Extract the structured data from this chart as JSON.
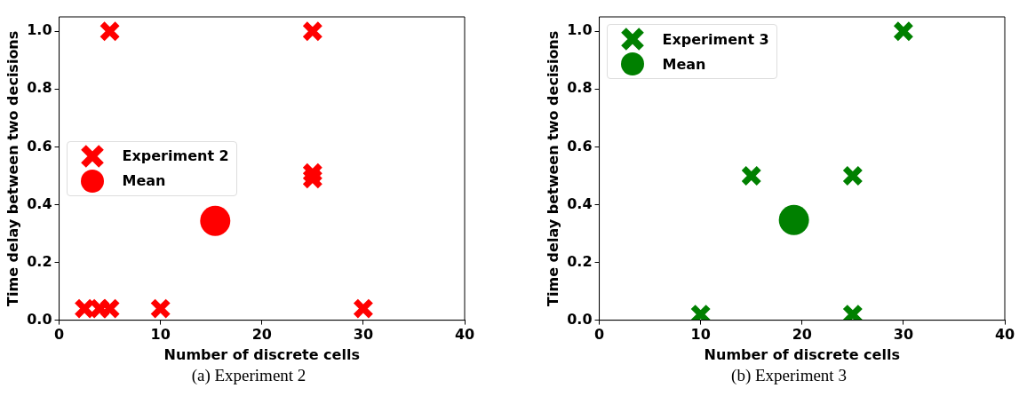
{
  "chart_data": [
    {
      "type": "scatter",
      "xlabel": "Number of discrete cells",
      "ylabel": "Time delay between two decisions",
      "annotations": [
        "(a) Experiment 2"
      ],
      "xlim": [
        0,
        40
      ],
      "xticks": [
        0,
        10,
        20,
        30,
        40
      ],
      "ylim": [
        0,
        1.05
      ],
      "yticks": [
        {
          "value": 0,
          "label": "0.0"
        },
        {
          "value": 0.2,
          "label": "0.2"
        },
        {
          "value": 0.4,
          "label": "0.4"
        },
        {
          "value": 0.6,
          "label": "0.6"
        },
        {
          "value": 0.8,
          "label": "0.8"
        },
        {
          "value": 1,
          "label": "1.0"
        }
      ],
      "grid": false,
      "legend": "center left",
      "series": [
        {
          "name": "Experiment 2",
          "color": "#ff0000",
          "marker": "cross",
          "x": [
            5,
            25,
            25,
            25,
            2.5,
            4,
            5,
            10,
            30
          ],
          "values": [
            1,
            1,
            0.51,
            0.49,
            0.04,
            0.04,
            0.04,
            0.04,
            0.04
          ]
        },
        {
          "name": "Mean",
          "color": "#ff0000",
          "marker": "circle",
          "x": [
            15.4
          ],
          "values": [
            0.344
          ]
        }
      ]
    },
    {
      "type": "scatter",
      "xlabel": "Number of discrete cells",
      "ylabel": "Time delay between two decisions",
      "annotations": [
        "(b) Experiment 3"
      ],
      "xlim": [
        0,
        40
      ],
      "xticks": [
        0,
        10,
        20,
        30,
        40
      ],
      "ylim": [
        0,
        1.05
      ],
      "yticks": [
        {
          "value": 0,
          "label": "0.0"
        },
        {
          "value": 0.2,
          "label": "0.2"
        },
        {
          "value": 0.4,
          "label": "0.4"
        },
        {
          "value": 0.6,
          "label": "0.6"
        },
        {
          "value": 0.8,
          "label": "0.8"
        },
        {
          "value": 1,
          "label": "1.0"
        }
      ],
      "grid": false,
      "legend": "top left",
      "series": [
        {
          "name": "Experiment 3",
          "color": "#008000",
          "marker": "cross",
          "x": [
            10,
            15,
            25,
            25,
            30
          ],
          "values": [
            0.02,
            0.5,
            0.5,
            0.02,
            1
          ]
        },
        {
          "name": "Mean",
          "color": "#008000",
          "marker": "circle",
          "x": [
            19.2
          ],
          "values": [
            0.347
          ]
        }
      ]
    }
  ]
}
